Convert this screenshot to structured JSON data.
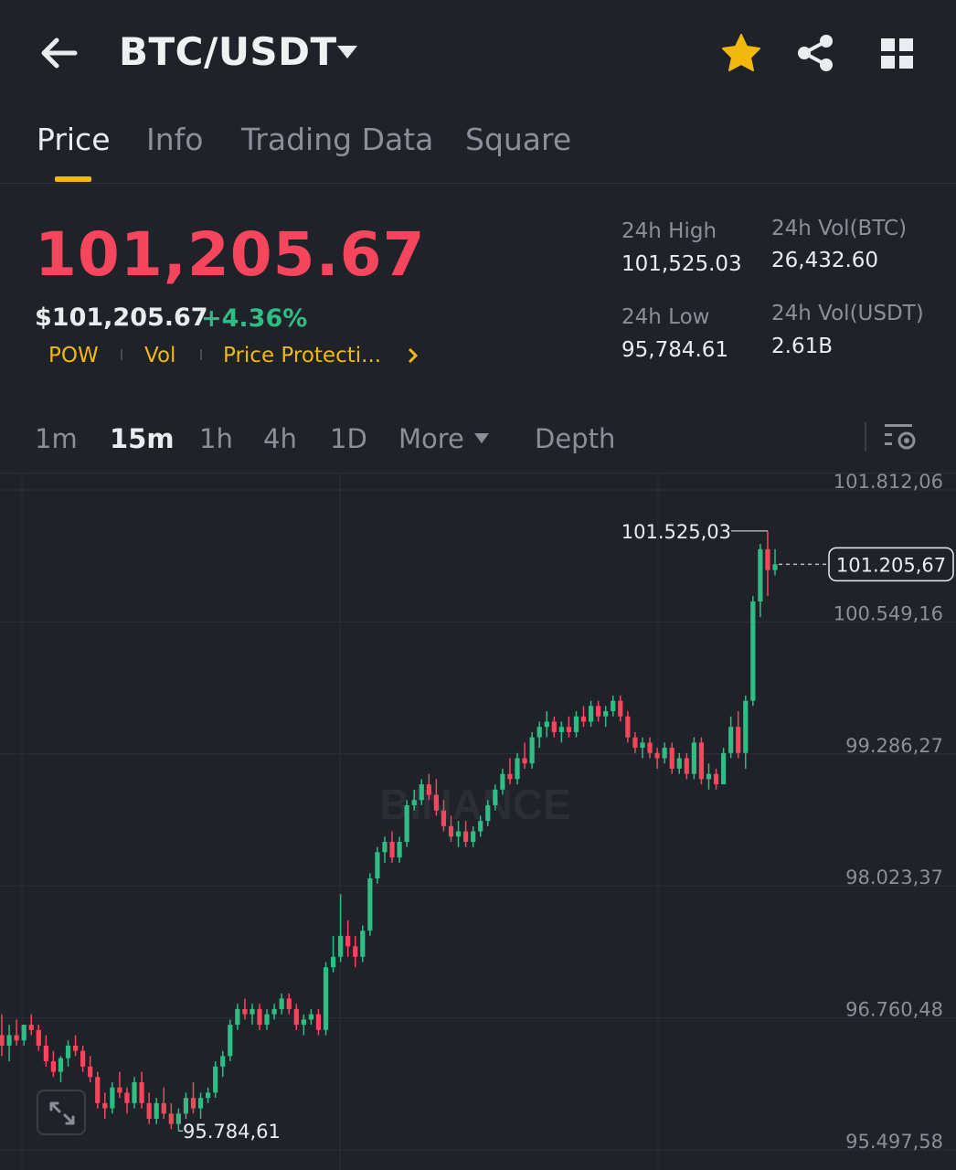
{
  "header": {
    "pair": "BTC/USDT",
    "icons": [
      "back-arrow-icon",
      "caret-down-icon",
      "star-icon",
      "share-icon",
      "grid-icon"
    ]
  },
  "tabs": [
    {
      "label": "Price",
      "active": true
    },
    {
      "label": "Info",
      "active": false
    },
    {
      "label": "Trading Data",
      "active": false
    },
    {
      "label": "Square",
      "active": false
    }
  ],
  "price": {
    "last": "101,205.67",
    "usd": "$101,205.67",
    "change": "+4.36%",
    "tags": [
      "POW",
      "Vol",
      "Price Protecti..."
    ]
  },
  "stats": {
    "high_label": "24h High",
    "high_value": "101,525.03",
    "low_label": "24h Low",
    "low_value": "95,784.61",
    "vol_btc_label": "24h Vol(BTC)",
    "vol_btc_value": "26,432.60",
    "vol_usdt_label": "24h Vol(USDT)",
    "vol_usdt_value": "2.61B"
  },
  "intervals": {
    "items": [
      "1m",
      "15m",
      "1h",
      "4h",
      "1D"
    ],
    "active": "15m",
    "more": "More",
    "depth": "Depth"
  },
  "colors": {
    "up": "#2ebd85",
    "down": "#f6465d",
    "accent": "#f0b90b",
    "background": "#1f2229"
  },
  "chart_data": {
    "type": "candlestick",
    "ylim": [
      95497.58,
      101812.06
    ],
    "y_ticks": [
      "101.812,06",
      "100.549,16",
      "99.286,27",
      "98.023,37",
      "96.760,48",
      "95.497,58"
    ],
    "y_tick_values": [
      101812.06,
      100549.16,
      99286.27,
      98023.37,
      96760.48,
      95497.58
    ],
    "high_marker": {
      "label": "101.525,03",
      "value": 101525.03
    },
    "low_marker": {
      "label": "95.784,61",
      "value": 95784.61
    },
    "last_price_label": "101.205,67",
    "last_price": 101205.67,
    "watermark": "BINANCE",
    "candles": [
      [
        96700,
        96900,
        96500,
        96600
      ],
      [
        96600,
        96800,
        96450,
        96700
      ],
      [
        96700,
        96850,
        96600,
        96650
      ],
      [
        96650,
        96800,
        96600,
        96800
      ],
      [
        96800,
        96900,
        96700,
        96750
      ],
      [
        96750,
        96800,
        96550,
        96600
      ],
      [
        96600,
        96700,
        96400,
        96450
      ],
      [
        96450,
        96550,
        96300,
        96350
      ],
      [
        96350,
        96500,
        96250,
        96480
      ],
      [
        96480,
        96650,
        96400,
        96600
      ],
      [
        96600,
        96700,
        96500,
        96550
      ],
      [
        96550,
        96600,
        96350,
        96400
      ],
      [
        96400,
        96500,
        96250,
        96300
      ],
      [
        96300,
        96350,
        96000,
        96050
      ],
      [
        96050,
        96150,
        95900,
        96000
      ],
      [
        96000,
        96250,
        95950,
        96200
      ],
      [
        96200,
        96350,
        96100,
        96150
      ],
      [
        96150,
        96200,
        95950,
        96050
      ],
      [
        96050,
        96300,
        96000,
        96250
      ],
      [
        96250,
        96350,
        96000,
        96050
      ],
      [
        96050,
        96150,
        95850,
        95900
      ],
      [
        95900,
        96100,
        95850,
        96050
      ],
      [
        96050,
        96200,
        95900,
        95950
      ],
      [
        95950,
        96050,
        95800,
        95850
      ],
      [
        95850,
        96000,
        95784.61,
        95950
      ],
      [
        95950,
        96150,
        95900,
        96100
      ],
      [
        96100,
        96250,
        95950,
        96000
      ],
      [
        96000,
        96150,
        95900,
        96100
      ],
      [
        96100,
        96200,
        96050,
        96150
      ],
      [
        96150,
        96450,
        96100,
        96400
      ],
      [
        96400,
        96550,
        96300,
        96500
      ],
      [
        96500,
        96850,
        96450,
        96800
      ],
      [
        96800,
        97000,
        96750,
        96950
      ],
      [
        96950,
        97050,
        96850,
        96900
      ],
      [
        96900,
        97000,
        96800,
        96950
      ],
      [
        96950,
        97000,
        96750,
        96800
      ],
      [
        96800,
        96950,
        96750,
        96900
      ],
      [
        96900,
        97000,
        96850,
        96950
      ],
      [
        96950,
        97100,
        96900,
        97050
      ],
      [
        97050,
        97100,
        96900,
        96950
      ],
      [
        96950,
        97000,
        96750,
        96800
      ],
      [
        96800,
        96900,
        96700,
        96850
      ],
      [
        96850,
        96950,
        96800,
        96900
      ],
      [
        96900,
        96950,
        96700,
        96750
      ],
      [
        96750,
        97400,
        96700,
        97350
      ],
      [
        97350,
        97650,
        97300,
        97450
      ],
      [
        97450,
        98050,
        97400,
        97650
      ],
      [
        97650,
        97800,
        97450,
        97550
      ],
      [
        97550,
        97650,
        97350,
        97450
      ],
      [
        97450,
        97750,
        97400,
        97700
      ],
      [
        97700,
        98250,
        97650,
        98200
      ],
      [
        98200,
        98500,
        98150,
        98450
      ],
      [
        98450,
        98600,
        98350,
        98550
      ],
      [
        98550,
        98650,
        98350,
        98400
      ],
      [
        98400,
        98600,
        98350,
        98550
      ],
      [
        98550,
        98950,
        98500,
        98900
      ],
      [
        98900,
        99050,
        98850,
        98950
      ],
      [
        98950,
        99150,
        98900,
        99100
      ],
      [
        99100,
        99200,
        98950,
        99000
      ],
      [
        99000,
        99150,
        98800,
        98850
      ],
      [
        98850,
        98950,
        98650,
        98700
      ],
      [
        98700,
        98800,
        98550,
        98600
      ],
      [
        98600,
        98750,
        98500,
        98650
      ],
      [
        98650,
        98750,
        98500,
        98550
      ],
      [
        98550,
        98700,
        98500,
        98650
      ],
      [
        98650,
        98800,
        98600,
        98750
      ],
      [
        98750,
        98950,
        98700,
        98900
      ],
      [
        98900,
        99100,
        98850,
        99050
      ],
      [
        99050,
        99250,
        99000,
        99200
      ],
      [
        99200,
        99350,
        99100,
        99150
      ],
      [
        99150,
        99400,
        99100,
        99350
      ],
      [
        99350,
        99500,
        99250,
        99300
      ],
      [
        99300,
        99600,
        99250,
        99550
      ],
      [
        99550,
        99700,
        99450,
        99650
      ],
      [
        99650,
        99800,
        99550,
        99700
      ],
      [
        99700,
        99750,
        99550,
        99600
      ],
      [
        99600,
        99700,
        99500,
        99650
      ],
      [
        99650,
        99750,
        99550,
        99600
      ],
      [
        99600,
        99800,
        99550,
        99750
      ],
      [
        99750,
        99850,
        99650,
        99700
      ],
      [
        99700,
        99900,
        99650,
        99850
      ],
      [
        99850,
        99900,
        99700,
        99750
      ],
      [
        99750,
        99850,
        99650,
        99800
      ],
      [
        99800,
        99950,
        99750,
        99900
      ],
      [
        99900,
        99950,
        99700,
        99750
      ],
      [
        99750,
        99800,
        99500,
        99550
      ],
      [
        99550,
        99600,
        99400,
        99450
      ],
      [
        99450,
        99550,
        99350,
        99500
      ],
      [
        99500,
        99550,
        99350,
        99400
      ],
      [
        99400,
        99450,
        99250,
        99350
      ],
      [
        99350,
        99500,
        99300,
        99450
      ],
      [
        99450,
        99500,
        99200,
        99250
      ],
      [
        99250,
        99400,
        99200,
        99350
      ],
      [
        99350,
        99400,
        99150,
        99200
      ],
      [
        99200,
        99550,
        99150,
        99500
      ],
      [
        99500,
        99550,
        99100,
        99150
      ],
      [
        99150,
        99300,
        99050,
        99200
      ],
      [
        99200,
        99250,
        99050,
        99100
      ],
      [
        99100,
        99450,
        99100,
        99400
      ],
      [
        99400,
        99750,
        99350,
        99650
      ],
      [
        99650,
        99800,
        99350,
        99400
      ],
      [
        99400,
        99950,
        99250,
        99900
      ],
      [
        99900,
        100900,
        99850,
        100850
      ],
      [
        100850,
        101400,
        100700,
        101350
      ],
      [
        101350,
        101525.03,
        100900,
        101150
      ],
      [
        101150,
        101350,
        101100,
        101205.67
      ]
    ]
  }
}
